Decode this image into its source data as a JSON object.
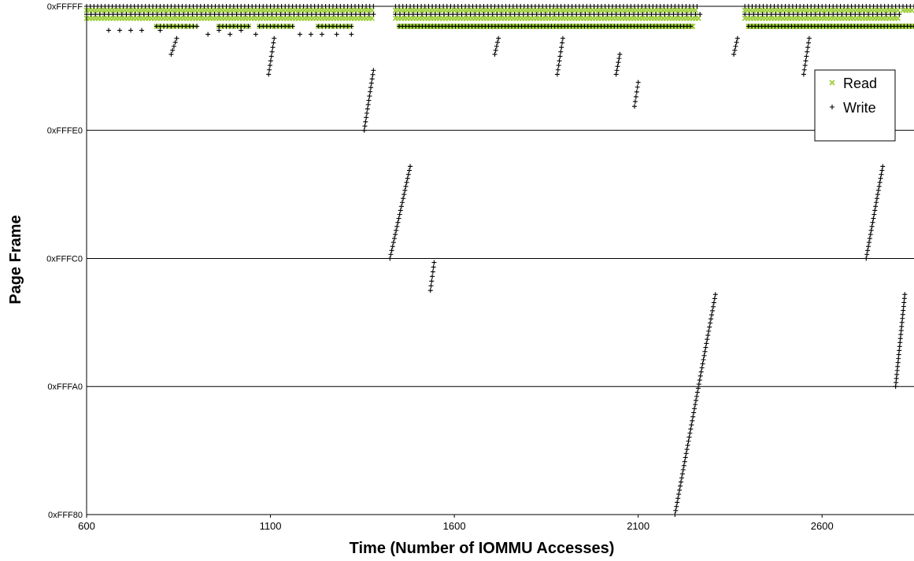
{
  "chart_data": {
    "type": "scatter",
    "xlabel": "Time (Number of IOMMU Accesses)",
    "ylabel": "Page Frame",
    "xlim": [
      600,
      2850
    ],
    "ylim": [
      1048448,
      1048575
    ],
    "x_ticks": [
      {
        "value": 600,
        "label": "600"
      },
      {
        "value": 1100,
        "label": "1100"
      },
      {
        "value": 1600,
        "label": "1600"
      },
      {
        "value": 2100,
        "label": "2100"
      },
      {
        "value": 2600,
        "label": "2600"
      }
    ],
    "y_ticks": [
      {
        "value": 1048448,
        "label": "0xFFF80"
      },
      {
        "value": 1048480,
        "label": "0xFFFA0"
      },
      {
        "value": 1048512,
        "label": "0xFFFC0"
      },
      {
        "value": 1048544,
        "label": "0xFFFE0"
      },
      {
        "value": 1048575,
        "label": "0xFFFFF"
      }
    ],
    "grid": "horizontal",
    "legend_position": "right",
    "series": [
      {
        "name": "Read",
        "marker": "x",
        "color": "#9acd32",
        "bands": [
          {
            "y": 1048574,
            "ranges": [
              [
                600,
                1380
              ],
              [
                1440,
                2260
              ],
              [
                2390,
                2810
              ],
              [
                2820,
                2850
              ]
            ],
            "step": 8
          },
          {
            "y": 1048572,
            "ranges": [
              [
                600,
                1380
              ],
              [
                1440,
                2270
              ],
              [
                2390,
                2810
              ]
            ],
            "step": 8
          },
          {
            "y": 1048570,
            "ranges": [
              [
                790,
                900
              ],
              [
                960,
                1040
              ],
              [
                1070,
                1160
              ],
              [
                1230,
                1320
              ]
            ],
            "step": 8
          },
          {
            "y": 1048570,
            "ranges": [
              [
                1450,
                2250
              ],
              [
                2400,
                2850
              ]
            ],
            "step": 3
          }
        ],
        "points": []
      },
      {
        "name": "Write",
        "marker": "+",
        "color": "#000000",
        "bands": [
          {
            "y": 1048575,
            "ranges": [
              [
                600,
                1380
              ],
              [
                1440,
                2260
              ],
              [
                2390,
                2810
              ],
              [
                2820,
                2850
              ]
            ],
            "step": 10
          },
          {
            "y": 1048573,
            "ranges": [
              [
                600,
                1380
              ],
              [
                1440,
                2270
              ],
              [
                2390,
                2810
              ]
            ],
            "step": 12
          },
          {
            "y": 1048570,
            "ranges": [
              [
                790,
                900
              ],
              [
                960,
                1040
              ],
              [
                1070,
                1160
              ],
              [
                1230,
                1320
              ]
            ],
            "step": 10
          },
          {
            "y": 1048570,
            "ranges": [
              [
                1450,
                2250
              ],
              [
                2400,
                2850
              ]
            ],
            "step": 9
          }
        ],
        "points": [
          [
            660,
            1048569
          ],
          [
            690,
            1048569
          ],
          [
            720,
            1048569
          ],
          [
            750,
            1048569
          ],
          [
            800,
            1048569
          ],
          [
            930,
            1048568
          ],
          [
            960,
            1048569
          ],
          [
            990,
            1048568
          ],
          [
            1020,
            1048569
          ],
          [
            1060,
            1048568
          ],
          [
            1180,
            1048568
          ],
          [
            1210,
            1048568
          ],
          [
            1240,
            1048568
          ],
          [
            1280,
            1048568
          ],
          [
            1320,
            1048568
          ]
        ],
        "sequences": [
          {
            "x0": 830,
            "x1": 845,
            "y0": 1048563,
            "y1": 1048567,
            "n": 5
          },
          {
            "x0": 1095,
            "x1": 1110,
            "y0": 1048558,
            "y1": 1048567,
            "n": 9
          },
          {
            "x0": 1355,
            "x1": 1380,
            "y0": 1048544,
            "y1": 1048559,
            "n": 15
          },
          {
            "x0": 1425,
            "x1": 1480,
            "y0": 1048512,
            "y1": 1048535,
            "n": 24
          },
          {
            "x0": 1535,
            "x1": 1545,
            "y0": 1048504,
            "y1": 1048511,
            "n": 7
          },
          {
            "x0": 1710,
            "x1": 1720,
            "y0": 1048563,
            "y1": 1048567,
            "n": 5
          },
          {
            "x0": 1880,
            "x1": 1895,
            "y0": 1048558,
            "y1": 1048567,
            "n": 9
          },
          {
            "x0": 2040,
            "x1": 2050,
            "y0": 1048558,
            "y1": 1048563,
            "n": 6
          },
          {
            "x0": 2090,
            "x1": 2100,
            "y0": 1048550,
            "y1": 1048556,
            "n": 6
          },
          {
            "x0": 2200,
            "x1": 2310,
            "y0": 1048448,
            "y1": 1048503,
            "n": 55
          },
          {
            "x0": 2360,
            "x1": 2370,
            "y0": 1048563,
            "y1": 1048567,
            "n": 5
          },
          {
            "x0": 2550,
            "x1": 2565,
            "y0": 1048558,
            "y1": 1048567,
            "n": 9
          },
          {
            "x0": 2720,
            "x1": 2765,
            "y0": 1048512,
            "y1": 1048535,
            "n": 24
          },
          {
            "x0": 2800,
            "x1": 2825,
            "y0": 1048480,
            "y1": 1048503,
            "n": 24
          }
        ]
      }
    ]
  }
}
